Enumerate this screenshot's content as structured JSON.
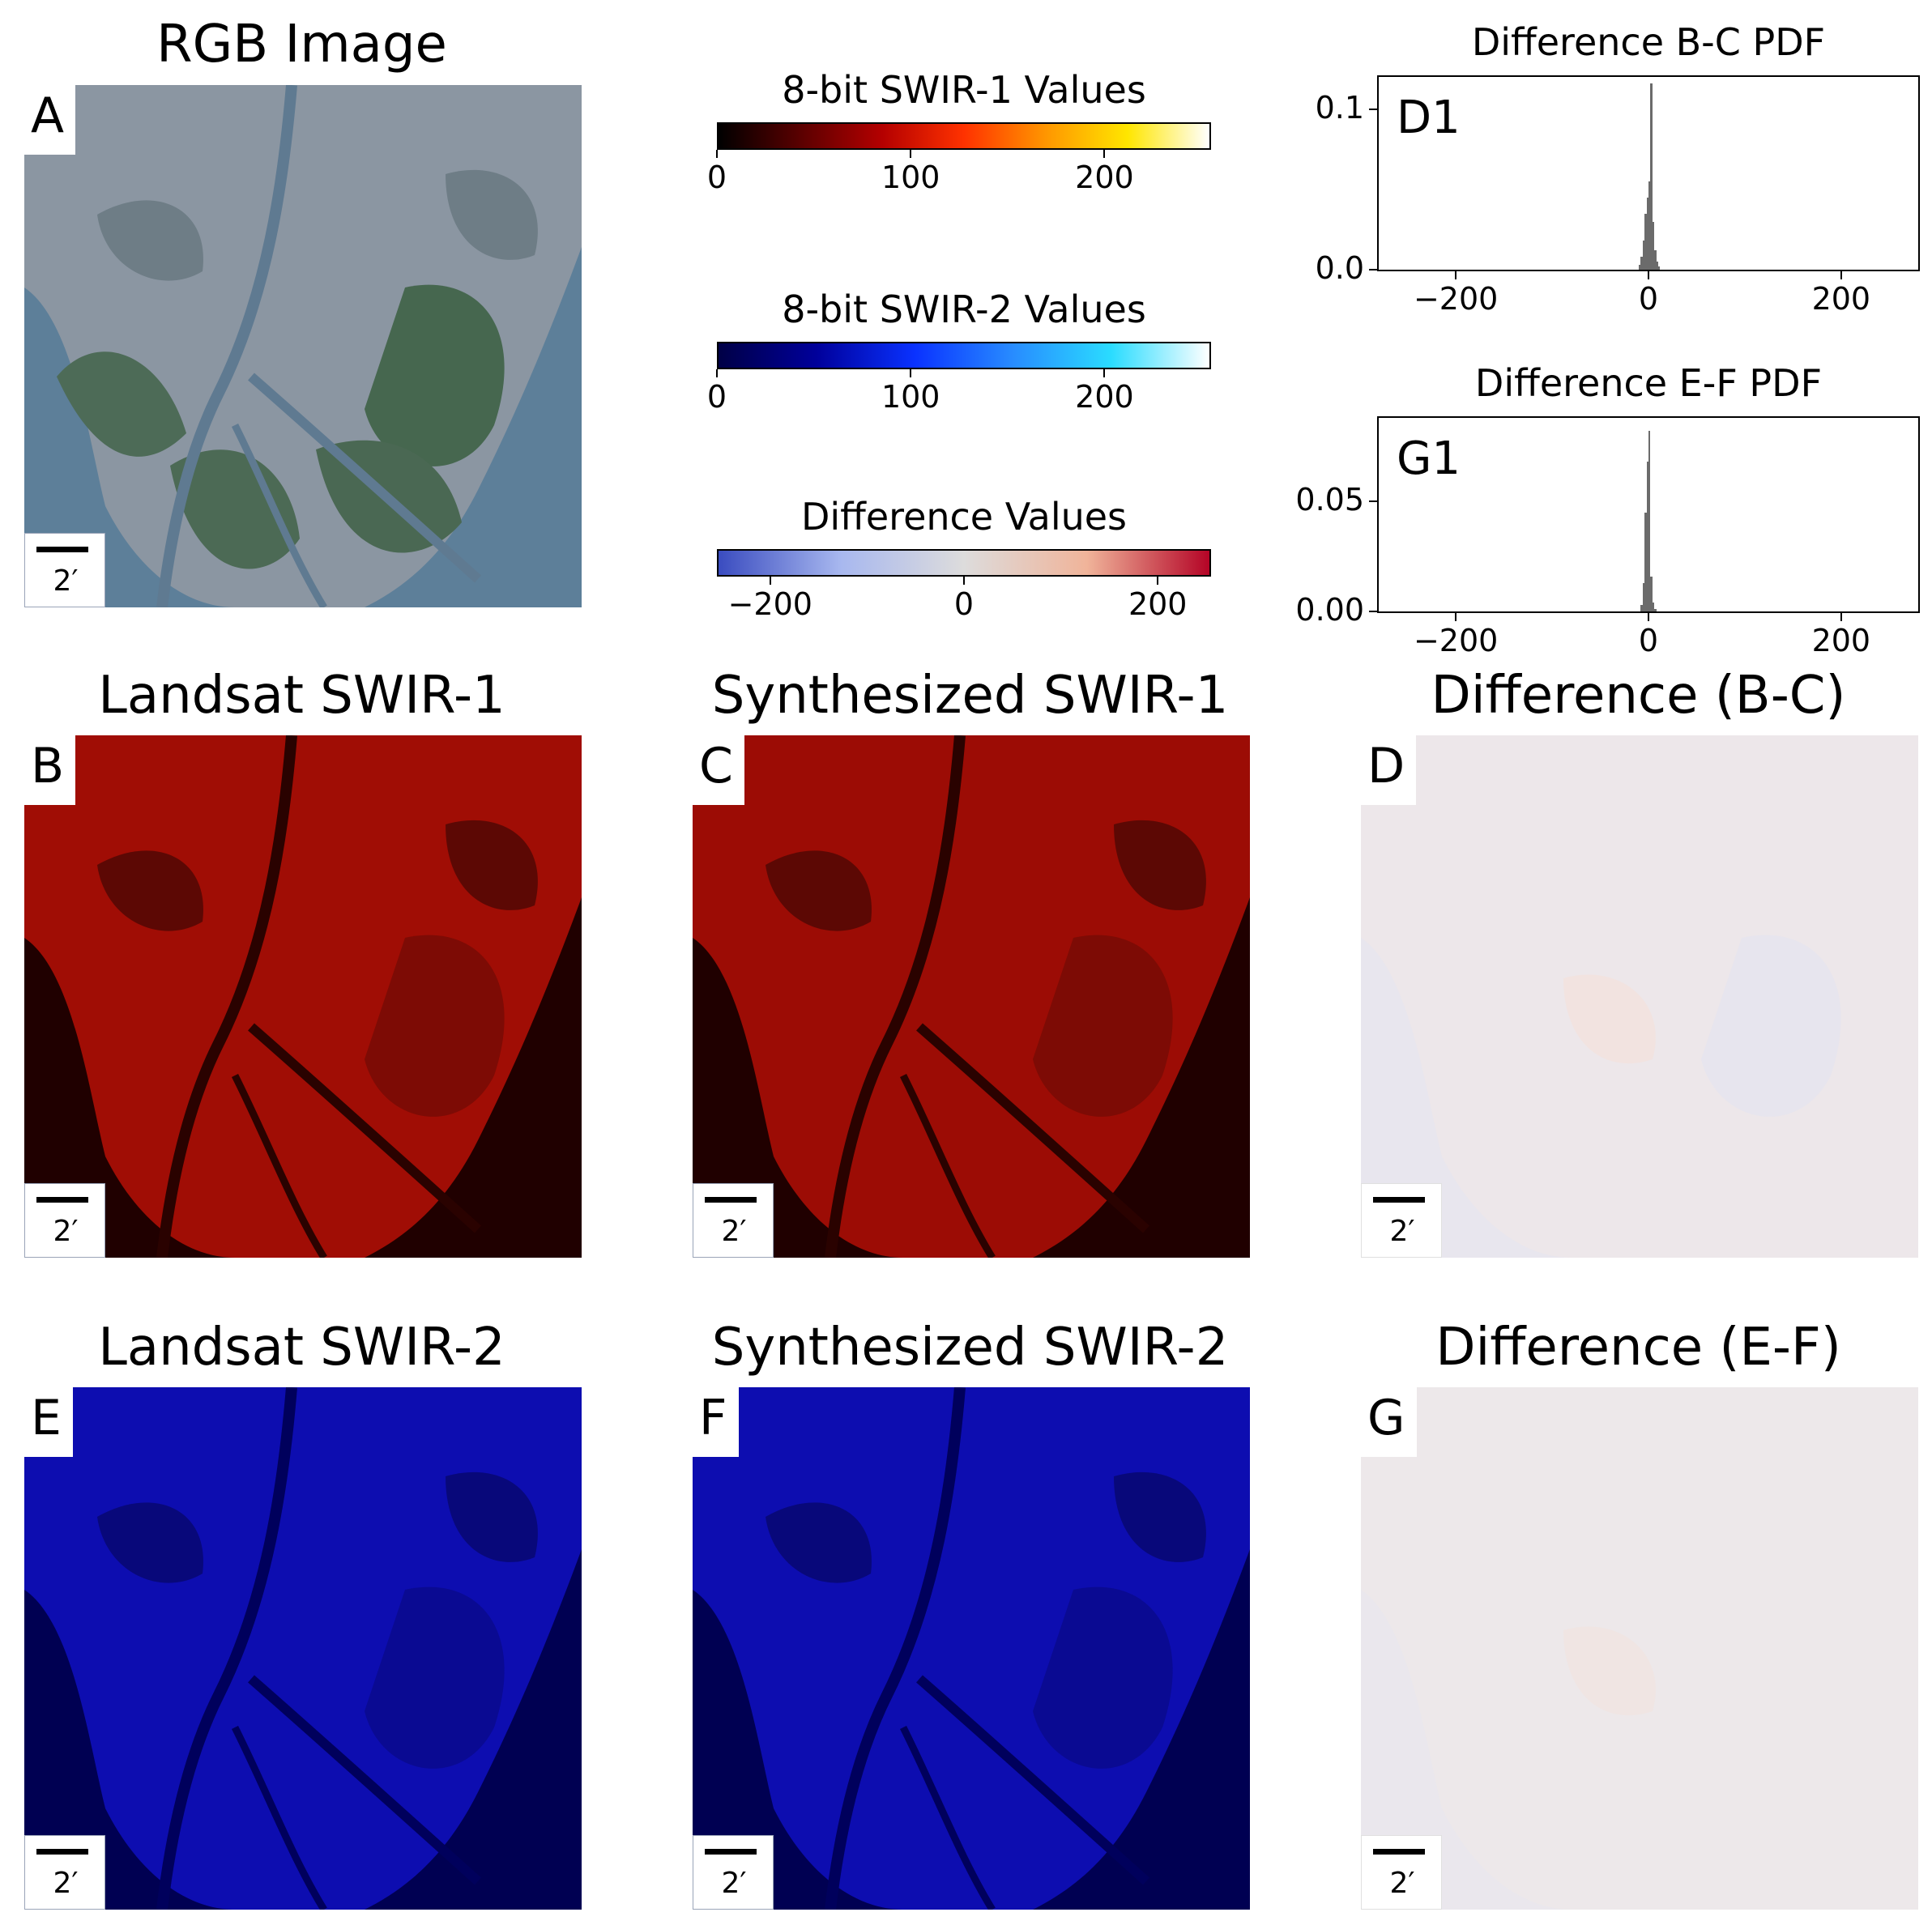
{
  "panels": {
    "A": {
      "letter": "A",
      "title": "RGB Image",
      "scale": "2′"
    },
    "B": {
      "letter": "B",
      "title": "Landsat SWIR-1",
      "scale": "2′"
    },
    "C": {
      "letter": "C",
      "title": "Synthesized SWIR-1",
      "scale": "2′"
    },
    "D": {
      "letter": "D",
      "title": "Difference (B-C)",
      "scale": "2′"
    },
    "E": {
      "letter": "E",
      "title": "Landsat SWIR-2",
      "scale": "2′"
    },
    "F": {
      "letter": "F",
      "title": "Synthesized SWIR-2",
      "scale": "2′"
    },
    "G": {
      "letter": "G",
      "title": "Difference (E-F)",
      "scale": "2′"
    }
  },
  "colorbars": [
    {
      "title": "8-bit SWIR-1 Values",
      "ticks": [
        "0",
        "100",
        "200"
      ],
      "tick_values": [
        0,
        100,
        200
      ],
      "range": [
        0,
        255
      ],
      "colors": [
        "#000000",
        "#5a0000",
        "#b40000",
        "#ff3200",
        "#ff9600",
        "#ffe600",
        "#ffffff"
      ]
    },
    {
      "title": "8-bit SWIR-2 Values",
      "ticks": [
        "0",
        "100",
        "200"
      ],
      "tick_values": [
        0,
        100,
        200
      ],
      "range": [
        0,
        255
      ],
      "colors": [
        "#000046",
        "#00009b",
        "#0a32ff",
        "#288cff",
        "#2adcff",
        "#ffffff"
      ]
    },
    {
      "title": "Difference Values",
      "ticks": [
        "−200",
        "0",
        "200"
      ],
      "tick_values": [
        -200,
        0,
        200
      ],
      "range": [
        -255,
        255
      ],
      "colors": [
        "#3a4cc0",
        "#a8b8ef",
        "#dddcdc",
        "#f0b49a",
        "#b40426"
      ]
    }
  ],
  "chart_data": [
    {
      "type": "bar",
      "title": "Difference B-C PDF",
      "inset_label": "D1",
      "xlim": [
        -280,
        280
      ],
      "xticks": [
        "−200",
        "0",
        "200"
      ],
      "xtick_values": [
        -200,
        0,
        200
      ],
      "ylim": [
        0,
        0.12
      ],
      "yticks": [
        "0.0",
        "0.1"
      ],
      "ytick_values": [
        0.0,
        0.1
      ],
      "bar_color": "#6b6b6b",
      "bins": [
        -10,
        -8,
        -6,
        -4,
        -2,
        0,
        2,
        4,
        6,
        8,
        10
      ],
      "values": [
        0.003,
        0.008,
        0.018,
        0.035,
        0.045,
        0.055,
        0.116,
        0.03,
        0.012,
        0.005,
        0.002
      ]
    },
    {
      "type": "bar",
      "title": "Difference E-F PDF",
      "inset_label": "G1",
      "xlim": [
        -280,
        280
      ],
      "xticks": [
        "−200",
        "0",
        "200"
      ],
      "xtick_values": [
        -200,
        0,
        200
      ],
      "ylim": [
        0,
        0.088
      ],
      "yticks": [
        "0.00",
        "0.05"
      ],
      "ytick_values": [
        0.0,
        0.05
      ],
      "bar_color": "#6b6b6b",
      "bins": [
        -8,
        -6,
        -4,
        -2,
        0,
        2,
        4,
        6
      ],
      "values": [
        0.003,
        0.013,
        0.045,
        0.068,
        0.082,
        0.016,
        0.004,
        0.001
      ]
    }
  ]
}
